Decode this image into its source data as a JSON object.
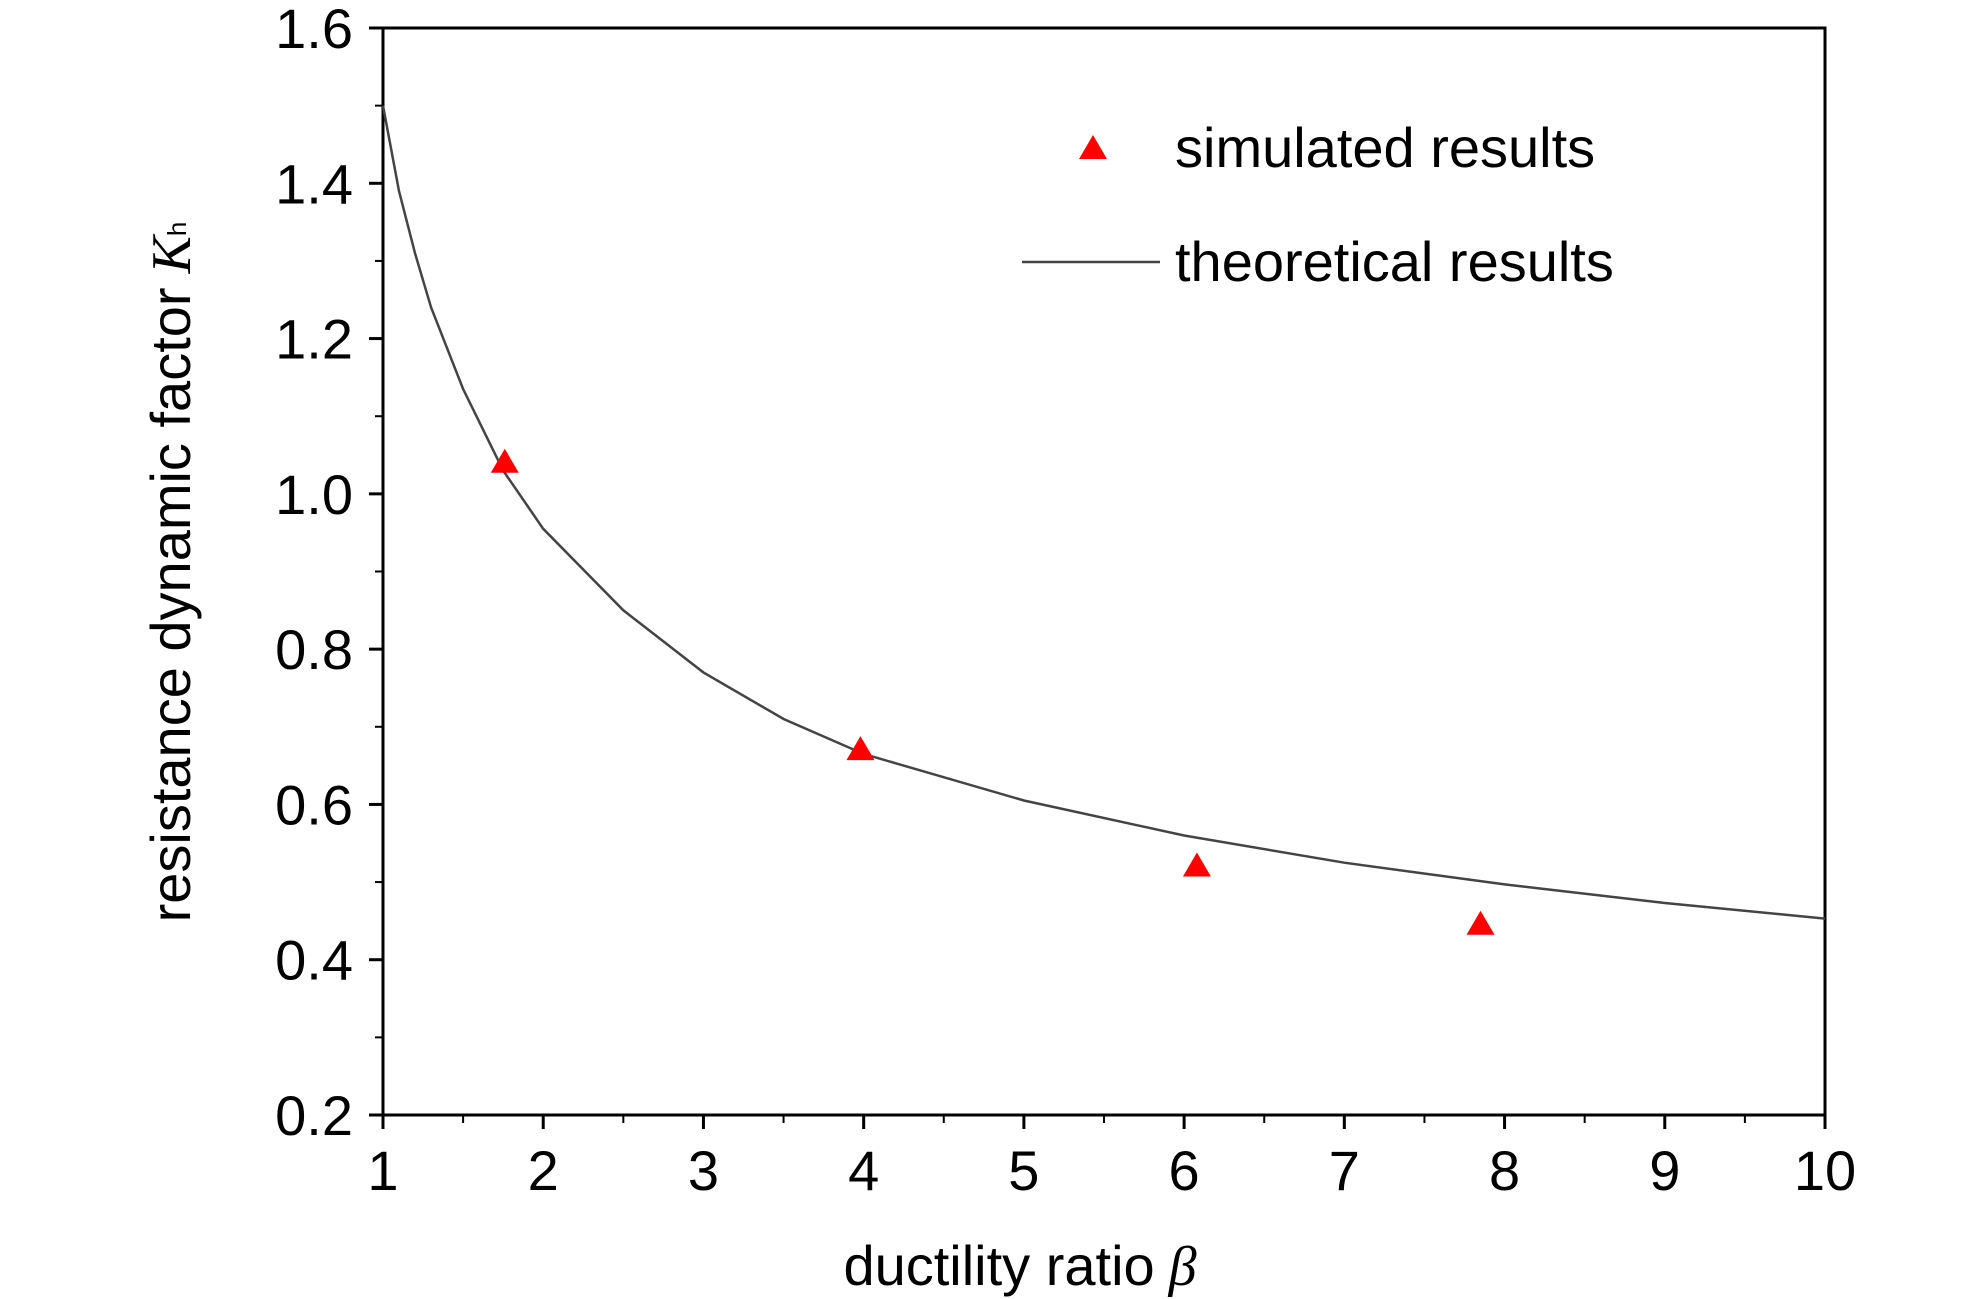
{
  "chart_data": {
    "type": "scatter",
    "xlabel": "ductility ratio",
    "xlabel_symbol": "β",
    "ylabel": "resistance dynamic factor",
    "ylabel_symbol": "K",
    "ylabel_subscript": "h",
    "xlim": [
      1,
      10
    ],
    "ylim": [
      0.2,
      1.6
    ],
    "x_ticks": [
      "1",
      "2",
      "3",
      "4",
      "5",
      "6",
      "7",
      "8",
      "9",
      "10"
    ],
    "y_ticks": [
      "0.2",
      "0.4",
      "0.6",
      "0.8",
      "1.0",
      "1.2",
      "1.4",
      "1.6"
    ],
    "grid": false,
    "legend_position": "top-right",
    "series": [
      {
        "name": "simulated results",
        "type": "scatter",
        "marker": "triangle",
        "color": "#ff0000",
        "points": [
          {
            "x": 1.76,
            "y": 1.04
          },
          {
            "x": 3.98,
            "y": 0.67
          },
          {
            "x": 6.08,
            "y": 0.52
          },
          {
            "x": 7.85,
            "y": 0.445
          }
        ]
      },
      {
        "name": "theoretical results",
        "type": "line",
        "color": "#444444",
        "points": [
          {
            "x": 1.0,
            "y": 1.5
          },
          {
            "x": 1.1,
            "y": 1.39
          },
          {
            "x": 1.2,
            "y": 1.31
          },
          {
            "x": 1.3,
            "y": 1.24
          },
          {
            "x": 1.5,
            "y": 1.135
          },
          {
            "x": 1.75,
            "y": 1.03
          },
          {
            "x": 2.0,
            "y": 0.955
          },
          {
            "x": 2.5,
            "y": 0.85
          },
          {
            "x": 3.0,
            "y": 0.77
          },
          {
            "x": 3.5,
            "y": 0.71
          },
          {
            "x": 4.0,
            "y": 0.665
          },
          {
            "x": 5.0,
            "y": 0.605
          },
          {
            "x": 6.0,
            "y": 0.56
          },
          {
            "x": 7.0,
            "y": 0.525
          },
          {
            "x": 8.0,
            "y": 0.497
          },
          {
            "x": 9.0,
            "y": 0.473
          },
          {
            "x": 10.0,
            "y": 0.453
          }
        ]
      }
    ]
  }
}
